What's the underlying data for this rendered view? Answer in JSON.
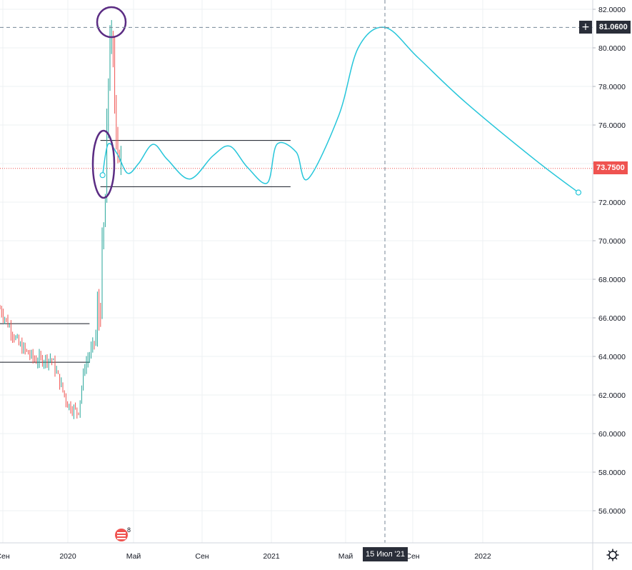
{
  "crosshair": {
    "price_label": "81.0600",
    "plus_label": "+",
    "date_label": "15 Июл '21"
  },
  "last_price": {
    "label": "73.7500",
    "color": "#ef5350"
  },
  "event": {
    "count_label": "8"
  },
  "colors": {
    "bull": "#26a69a",
    "bear": "#ef5350",
    "projection": "#26c6da",
    "annotation": "#5b2c83",
    "level_line": "#131722",
    "grid": "#eef0f3",
    "axis_bg": "#ffffff"
  },
  "icons": {
    "settings": "gear-icon",
    "event": "earnings-flag-icon"
  },
  "chart_data": {
    "type": "candlestick",
    "y_ticks": [
      "82.0000",
      "80.0000",
      "78.0000",
      "76.0000",
      "74.0000",
      "72.0000",
      "70.0000",
      "68.0000",
      "66.0000",
      "64.0000",
      "62.0000",
      "60.0000",
      "58.0000",
      "56.0000"
    ],
    "x_ticks": [
      "Сен",
      "2020",
      "Май",
      "Сен",
      "2021",
      "Май",
      "Сен",
      "2022"
    ],
    "ylim": [
      54.5,
      82.6
    ],
    "series_price": {
      "description_points": [
        {
          "t": "2019-09",
          "v": 66.2
        },
        {
          "t": "2019-10",
          "v": 64.6
        },
        {
          "t": "2019-11",
          "v": 63.8
        },
        {
          "t": "2019-12",
          "v": 63.9
        },
        {
          "t": "2020-01",
          "v": 61.5
        },
        {
          "t": "2020-01-20",
          "v": 61.1
        },
        {
          "t": "2020-02",
          "v": 63.5
        },
        {
          "t": "2020-02-20",
          "v": 64.8
        },
        {
          "t": "2020-03-01",
          "v": 67.0
        },
        {
          "t": "2020-03-10",
          "v": 72.0
        },
        {
          "t": "2020-03-18",
          "v": 81.0
        },
        {
          "t": "2020-03-25",
          "v": 78.5
        },
        {
          "t": "2020-04-01",
          "v": 75.5
        },
        {
          "t": "2020-04-08",
          "v": 73.75
        }
      ]
    },
    "horizontal_levels": [
      {
        "value": 65.7,
        "from": "2019-08",
        "to": "2020-02-10"
      },
      {
        "value": 63.7,
        "from": "2019-08",
        "to": "2020-02-10"
      },
      {
        "value": 75.2,
        "from": "2020-03-01",
        "to": "2021-02-01"
      },
      {
        "value": 72.8,
        "from": "2020-03-01",
        "to": "2021-02-01"
      }
    ],
    "projection": [
      {
        "t": "2020-03-05",
        "v": 73.4
      },
      {
        "t": "2020-03-15",
        "v": 75.0
      },
      {
        "t": "2020-04-01",
        "v": 74.5
      },
      {
        "t": "2020-04-20",
        "v": 73.5
      },
      {
        "t": "2020-05-10",
        "v": 74.0
      },
      {
        "t": "2020-06-05",
        "v": 75.0
      },
      {
        "t": "2020-07-01",
        "v": 74.2
      },
      {
        "t": "2020-08-10",
        "v": 73.2
      },
      {
        "t": "2020-09-20",
        "v": 74.4
      },
      {
        "t": "2020-10-20",
        "v": 74.9
      },
      {
        "t": "2020-11-20",
        "v": 73.8
      },
      {
        "t": "2020-12-25",
        "v": 73.0
      },
      {
        "t": "2021-01-10",
        "v": 75.0
      },
      {
        "t": "2021-02-10",
        "v": 74.6
      },
      {
        "t": "2021-03-01",
        "v": 73.2
      },
      {
        "t": "2021-04-20",
        "v": 76.5
      },
      {
        "t": "2021-05-25",
        "v": 80.0
      },
      {
        "t": "2021-07-15",
        "v": 81.06
      },
      {
        "t": "2021-09-10",
        "v": 79.5
      },
      {
        "t": "2021-12-01",
        "v": 77.2
      },
      {
        "t": "2022-04-01",
        "v": 74.2
      },
      {
        "t": "2022-06-15",
        "v": 72.5
      }
    ],
    "last_price": 73.75,
    "crosshair_price": 81.06,
    "crosshair_date": "2021-07-15"
  }
}
